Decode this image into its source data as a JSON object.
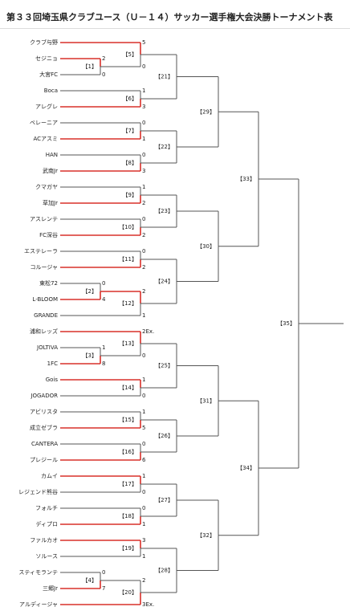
{
  "header": {
    "title": "第３３回埼玉県クラブユース（Ｕ－１４）サッカー選手権大会決勝トーナメント表"
  },
  "bracket": {
    "label": "【35】",
    "sides": [
      {
        "match": {
          "label": "【33】",
          "sides": [
            {
              "match": {
                "label": "【29】",
                "sides": [
                  {
                    "match": {
                      "label": "【21】",
                      "sides": [
                        {
                          "match": {
                            "label": "【5】",
                            "sides": [
                              {
                                "team": "クラブ与野",
                                "score": 5
                              },
                              {
                                "match": {
                                  "label": "【1】",
                                  "sides": [
                                    {
                                      "team": "セジニョ",
                                      "score": 2
                                    },
                                    {
                                      "team": "大宮FC",
                                      "score": 0
                                    }
                                  ]
                                },
                                "score": 0
                              }
                            ]
                          }
                        },
                        {
                          "match": {
                            "label": "【6】",
                            "sides": [
                              {
                                "team": "Boca",
                                "score": 1
                              },
                              {
                                "team": "アレグレ",
                                "score": 3
                              }
                            ]
                          }
                        }
                      ]
                    }
                  },
                  {
                    "match": {
                      "label": "【22】",
                      "sides": [
                        {
                          "match": {
                            "label": "【7】",
                            "sides": [
                              {
                                "team": "ベレーニア",
                                "score": 0
                              },
                              {
                                "team": "ACアスミ",
                                "score": 1
                              }
                            ]
                          }
                        },
                        {
                          "match": {
                            "label": "【8】",
                            "sides": [
                              {
                                "team": "HAN",
                                "score": 0
                              },
                              {
                                "team": "武南Jr",
                                "score": 3
                              }
                            ]
                          }
                        }
                      ]
                    }
                  }
                ]
              }
            },
            {
              "match": {
                "label": "【30】",
                "sides": [
                  {
                    "match": {
                      "label": "【23】",
                      "sides": [
                        {
                          "match": {
                            "label": "【9】",
                            "sides": [
                              {
                                "team": "クマガヤ",
                                "score": 1
                              },
                              {
                                "team": "草加Jr",
                                "score": 2
                              }
                            ]
                          }
                        },
                        {
                          "match": {
                            "label": "【10】",
                            "sides": [
                              {
                                "team": "アスレンテ",
                                "score": 0
                              },
                              {
                                "team": "FC深谷",
                                "score": 2
                              }
                            ]
                          }
                        }
                      ]
                    }
                  },
                  {
                    "match": {
                      "label": "【24】",
                      "sides": [
                        {
                          "match": {
                            "label": "【11】",
                            "sides": [
                              {
                                "team": "エステレーラ",
                                "score": 0
                              },
                              {
                                "team": "コルージャ",
                                "score": 2
                              }
                            ]
                          }
                        },
                        {
                          "match": {
                            "label": "【12】",
                            "sides": [
                              {
                                "match": {
                                  "label": "【2】",
                                  "sides": [
                                    {
                                      "team": "東松72",
                                      "score": 0
                                    },
                                    {
                                      "team": "L-BLOOM",
                                      "score": 4
                                    }
                                  ]
                                },
                                "score": 2
                              },
                              {
                                "team": "GRANDE",
                                "score": 1
                              }
                            ]
                          }
                        }
                      ]
                    }
                  }
                ]
              }
            }
          ]
        }
      },
      {
        "match": {
          "label": "【34】",
          "sides": [
            {
              "match": {
                "label": "【31】",
                "sides": [
                  {
                    "match": {
                      "label": "【25】",
                      "sides": [
                        {
                          "match": {
                            "label": "【13】",
                            "sides": [
                              {
                                "team": "浦和レッズ",
                                "score": "2Ex."
                              },
                              {
                                "match": {
                                  "label": "【3】",
                                  "sides": [
                                    {
                                      "team": "JOLTIVA",
                                      "score": 1
                                    },
                                    {
                                      "team": "1FC",
                                      "score": 8
                                    }
                                  ]
                                },
                                "score": 0
                              }
                            ]
                          }
                        },
                        {
                          "match": {
                            "label": "【14】",
                            "sides": [
                              {
                                "team": "Gois",
                                "score": 1
                              },
                              {
                                "team": "JOGADOR",
                                "score": 0
                              }
                            ]
                          }
                        }
                      ]
                    }
                  },
                  {
                    "match": {
                      "label": "【26】",
                      "sides": [
                        {
                          "match": {
                            "label": "【15】",
                            "sides": [
                              {
                                "team": "アビリスタ",
                                "score": 1
                              },
                              {
                                "team": "成立ゼブラ",
                                "score": 5
                              }
                            ]
                          }
                        },
                        {
                          "match": {
                            "label": "【16】",
                            "sides": [
                              {
                                "team": "CANTERA",
                                "score": 0
                              },
                              {
                                "team": "プレジール",
                                "score": 6
                              }
                            ]
                          }
                        }
                      ]
                    }
                  }
                ]
              }
            },
            {
              "match": {
                "label": "【32】",
                "sides": [
                  {
                    "match": {
                      "label": "【27】",
                      "sides": [
                        {
                          "match": {
                            "label": "【17】",
                            "sides": [
                              {
                                "team": "カムイ",
                                "score": 1
                              },
                              {
                                "team": "レジェンド熊谷",
                                "score": 0
                              }
                            ]
                          }
                        },
                        {
                          "match": {
                            "label": "【18】",
                            "sides": [
                              {
                                "team": "フォルチ",
                                "score": 0
                              },
                              {
                                "team": "ディプロ",
                                "score": 1
                              }
                            ]
                          }
                        }
                      ]
                    }
                  },
                  {
                    "match": {
                      "label": "【28】",
                      "sides": [
                        {
                          "match": {
                            "label": "【19】",
                            "sides": [
                              {
                                "team": "ファルカオ",
                                "score": 3
                              },
                              {
                                "team": "ソルース",
                                "score": 1
                              }
                            ]
                          }
                        },
                        {
                          "match": {
                            "label": "【20】",
                            "sides": [
                              {
                                "match": {
                                  "label": "【4】",
                                  "sides": [
                                    {
                                      "team": "スティモランテ",
                                      "score": 0
                                    },
                                    {
                                      "team": "三郷Jr",
                                      "score": 7
                                    }
                                  ]
                                },
                                "score": 2
                              },
                              {
                                "team": "アルディージャ",
                                "score": "3Ex."
                              }
                            ]
                          }
                        }
                      ]
                    }
                  }
                ]
              }
            }
          ]
        }
      }
    ]
  }
}
